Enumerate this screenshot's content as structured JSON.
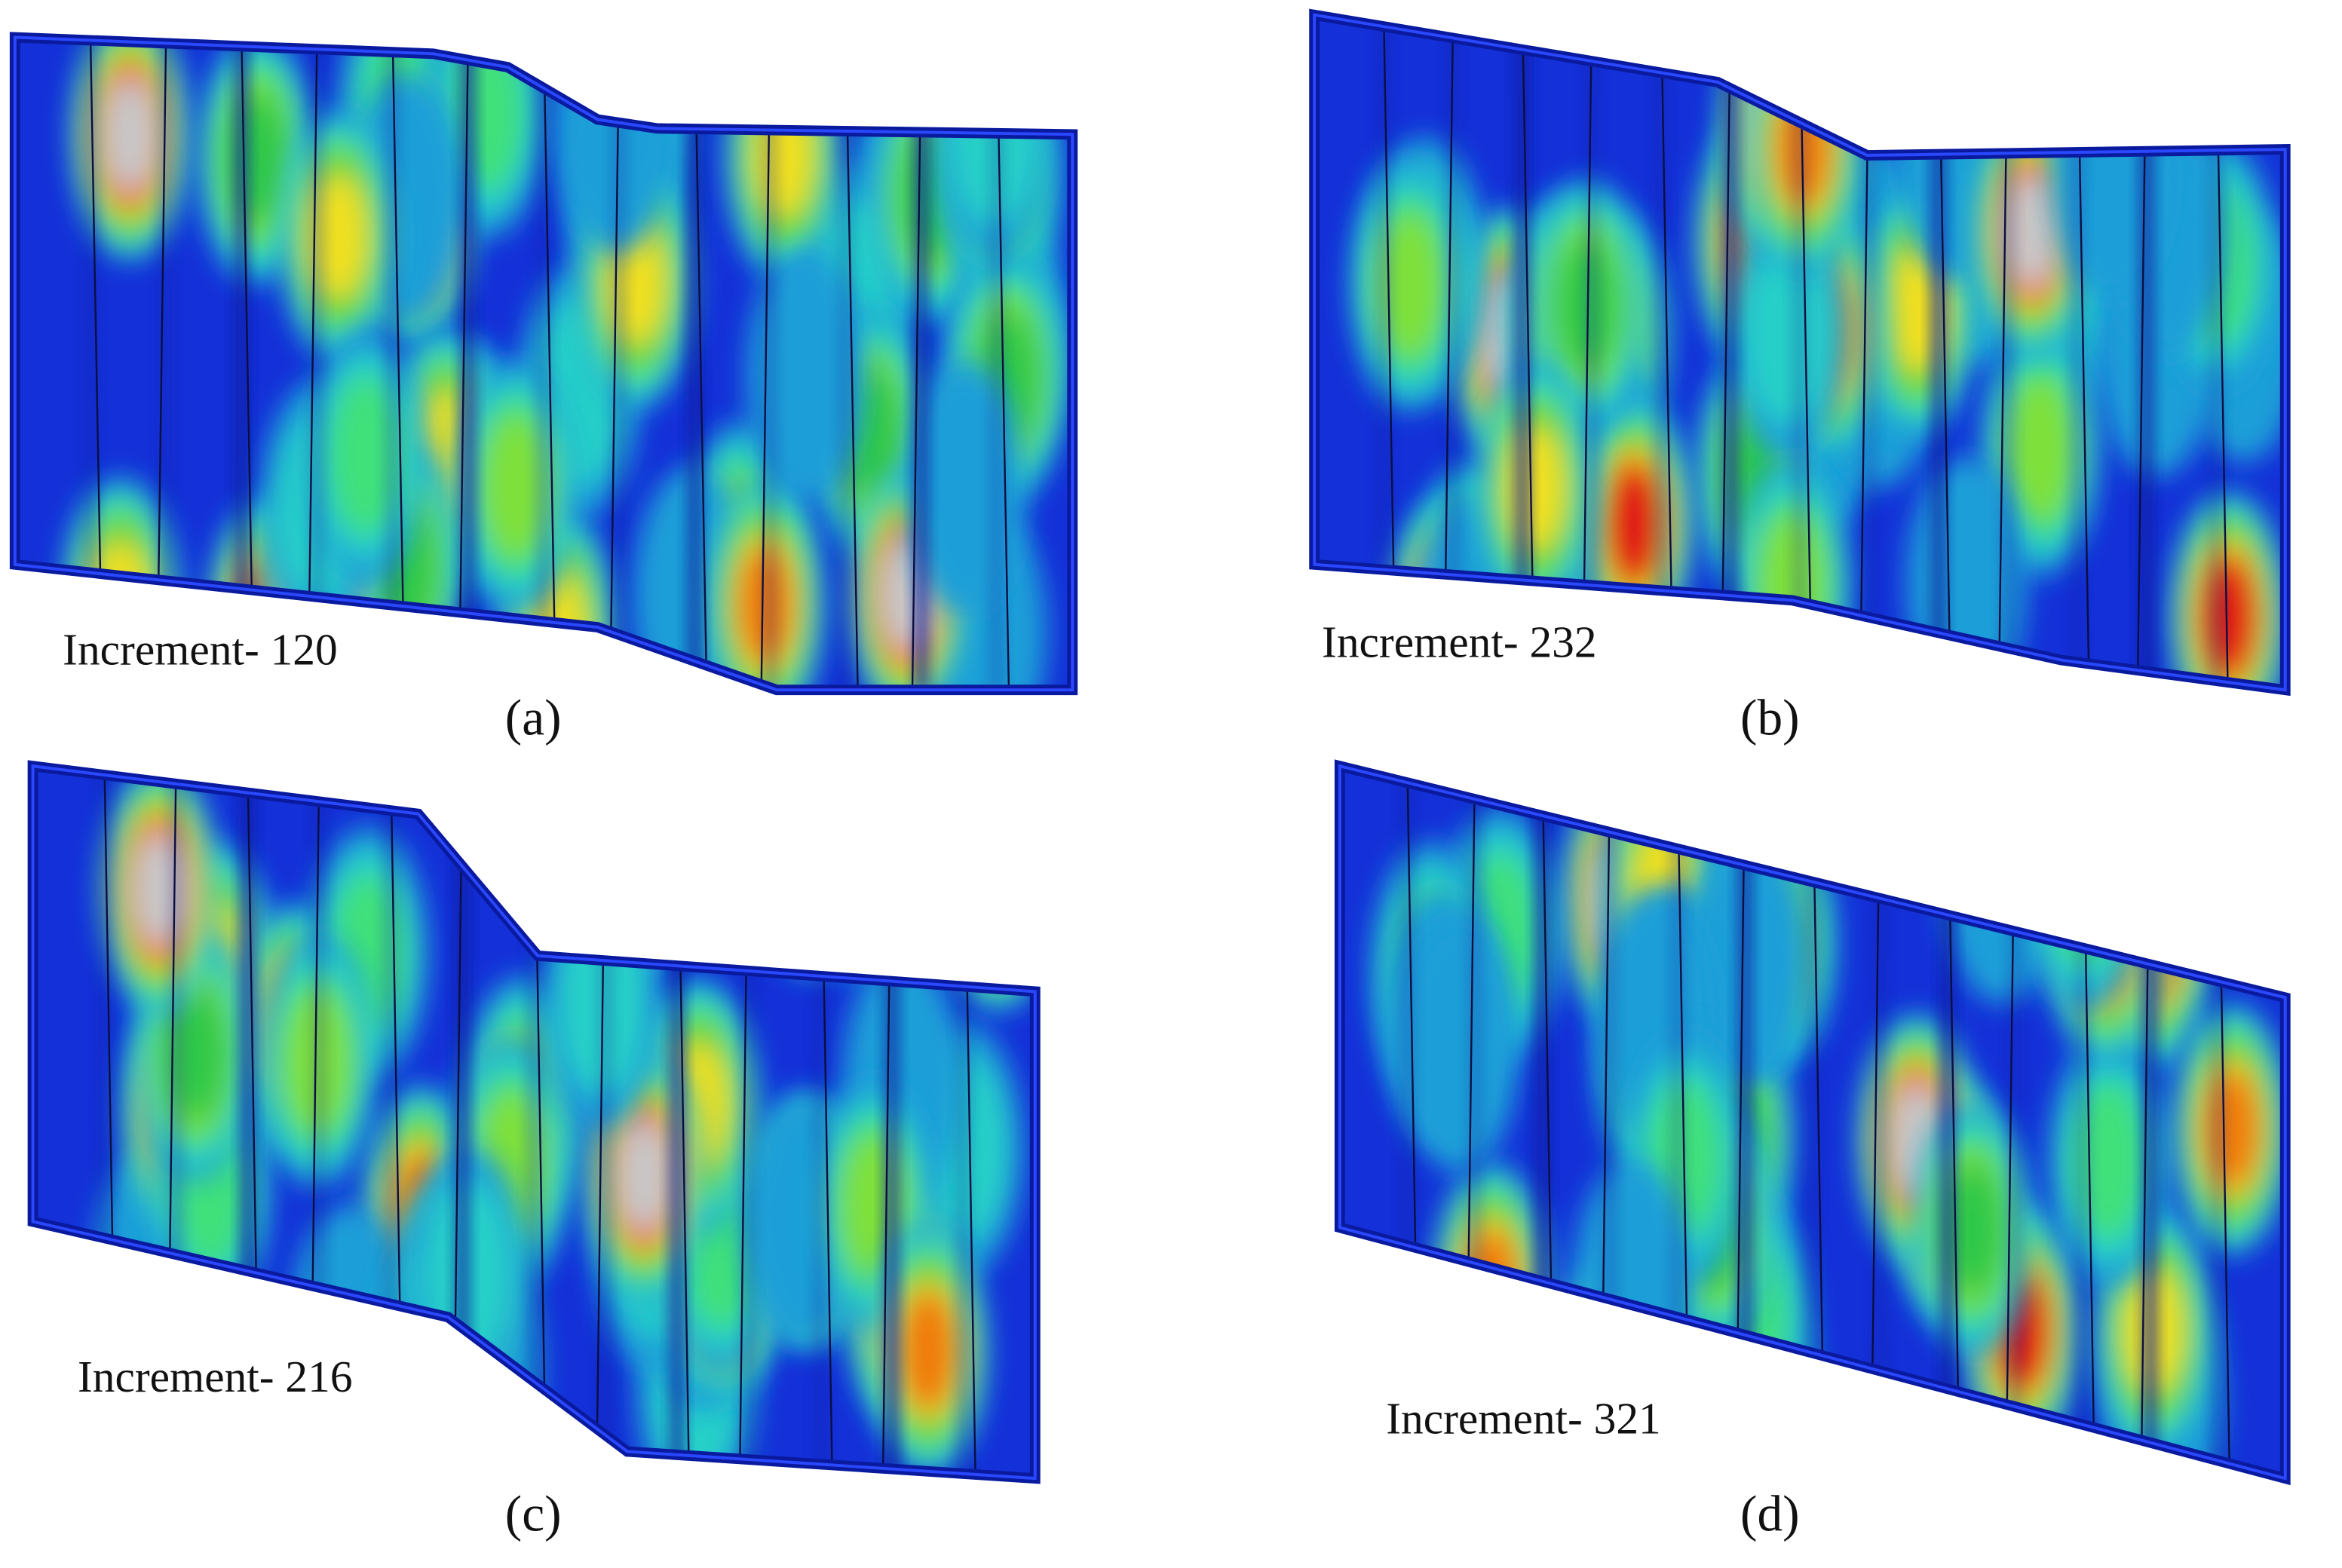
{
  "panels": [
    {
      "label": "Increment- 120",
      "caption": "(a)"
    },
    {
      "label": "Increment- 232",
      "caption": "(b)"
    },
    {
      "label": "Increment- 216",
      "caption": "(c)"
    },
    {
      "label": "Increment- 321",
      "caption": "(d)"
    }
  ]
}
